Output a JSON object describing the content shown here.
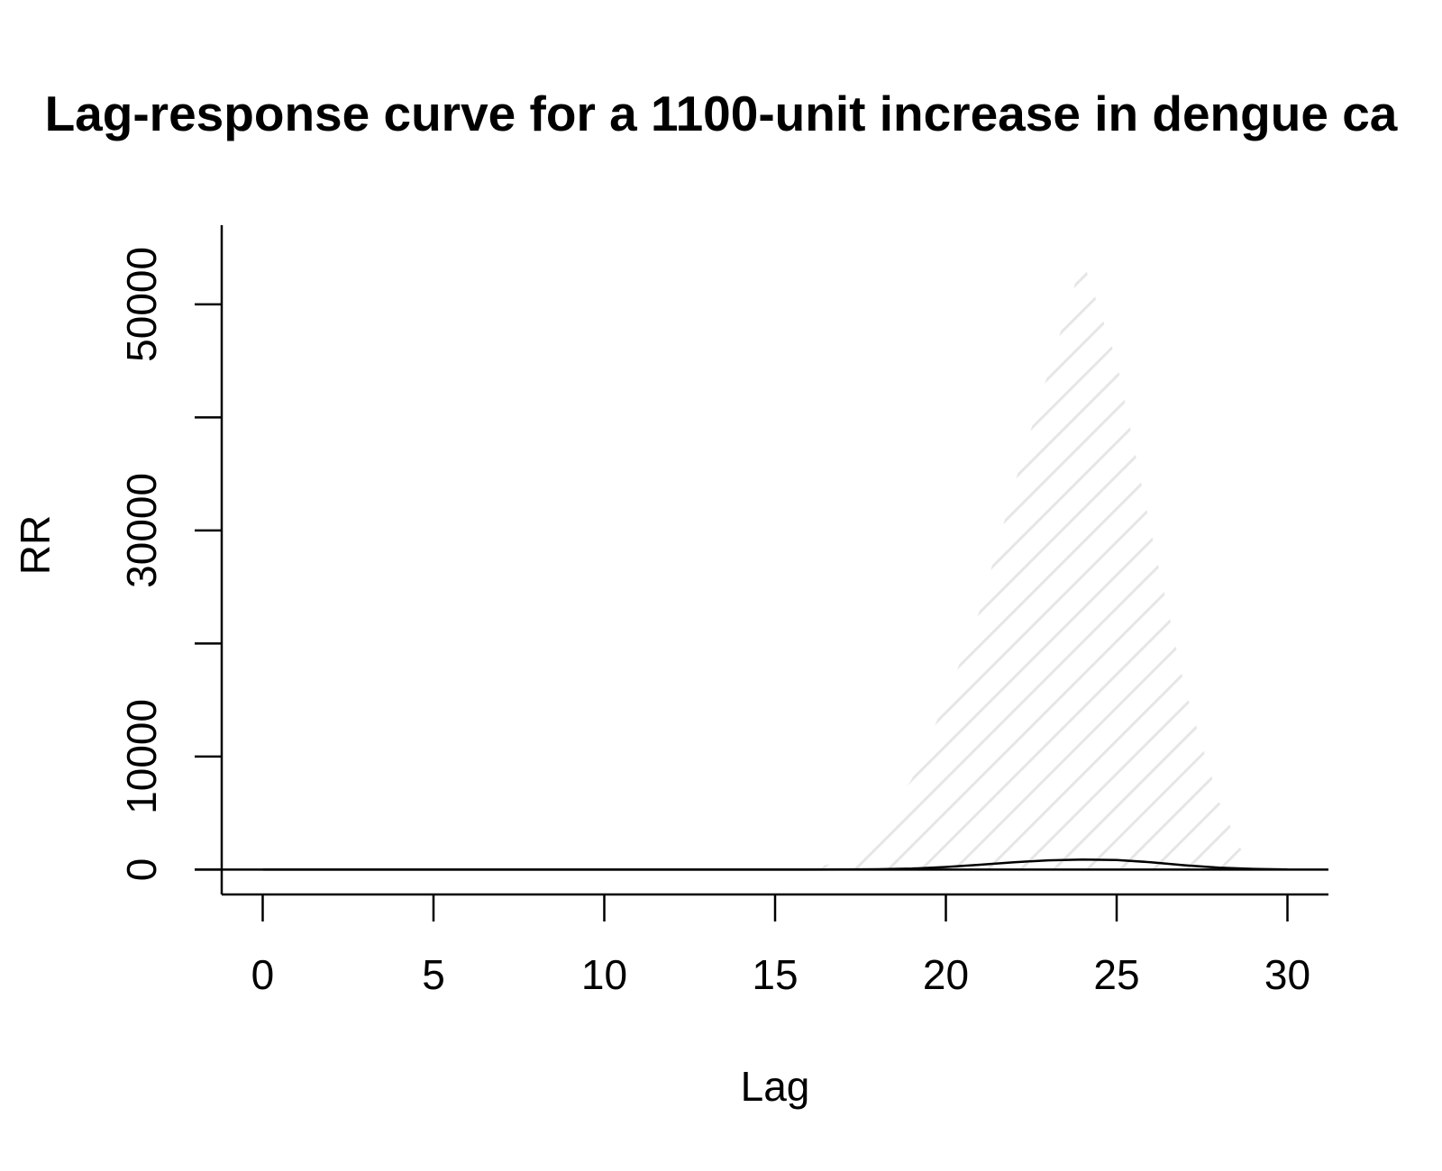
{
  "chart_data": {
    "type": "line",
    "title": "Lag-response curve for a 1100-unit increase in dengue ca",
    "xlabel": "Lag",
    "ylabel": "RR",
    "xlim": [
      -1.2,
      31.2
    ],
    "ylim": [
      -2200,
      57000
    ],
    "x_ticks": [
      0,
      5,
      10,
      15,
      20,
      25,
      30
    ],
    "x_tick_labels": [
      "0",
      "5",
      "10",
      "15",
      "20",
      "25",
      "30"
    ],
    "y_ticks": [
      0,
      10000,
      20000,
      30000,
      40000,
      50000
    ],
    "y_tick_labels": [
      "0",
      "10000",
      "",
      "30000",
      "",
      "50000"
    ],
    "reference_line": 1,
    "series": [
      {
        "x": [
          0,
          2,
          4,
          6,
          8,
          10,
          12,
          14,
          16,
          17,
          18,
          19,
          20,
          21,
          22,
          23,
          24,
          25,
          26,
          27,
          28,
          29,
          30
        ],
        "values": [
          1,
          1,
          1,
          1,
          1,
          1,
          1,
          1,
          2,
          8,
          30,
          90,
          230,
          430,
          650,
          820,
          890,
          850,
          650,
          380,
          170,
          60,
          10
        ]
      }
    ],
    "ci_band": {
      "x": [
        15.8,
        16.5,
        17.0,
        17.5,
        18.0,
        19.0,
        20.0,
        21.0,
        22.0,
        23.0,
        24.0,
        25.0,
        26.0,
        27.0,
        28.0,
        28.6,
        29.0
      ],
      "lower": [
        0,
        0,
        0,
        0,
        0,
        0,
        0,
        0,
        0,
        0,
        0,
        0,
        0,
        0,
        0,
        0,
        0
      ],
      "upper": [
        0,
        400,
        1000,
        1800,
        3000,
        8000,
        15000,
        23000,
        34000,
        44000,
        54000,
        45000,
        30000,
        16000,
        6000,
        2000,
        0
      ],
      "fill": "hatched",
      "color": "#e6e6e6"
    },
    "grid": false,
    "legend": "none"
  }
}
